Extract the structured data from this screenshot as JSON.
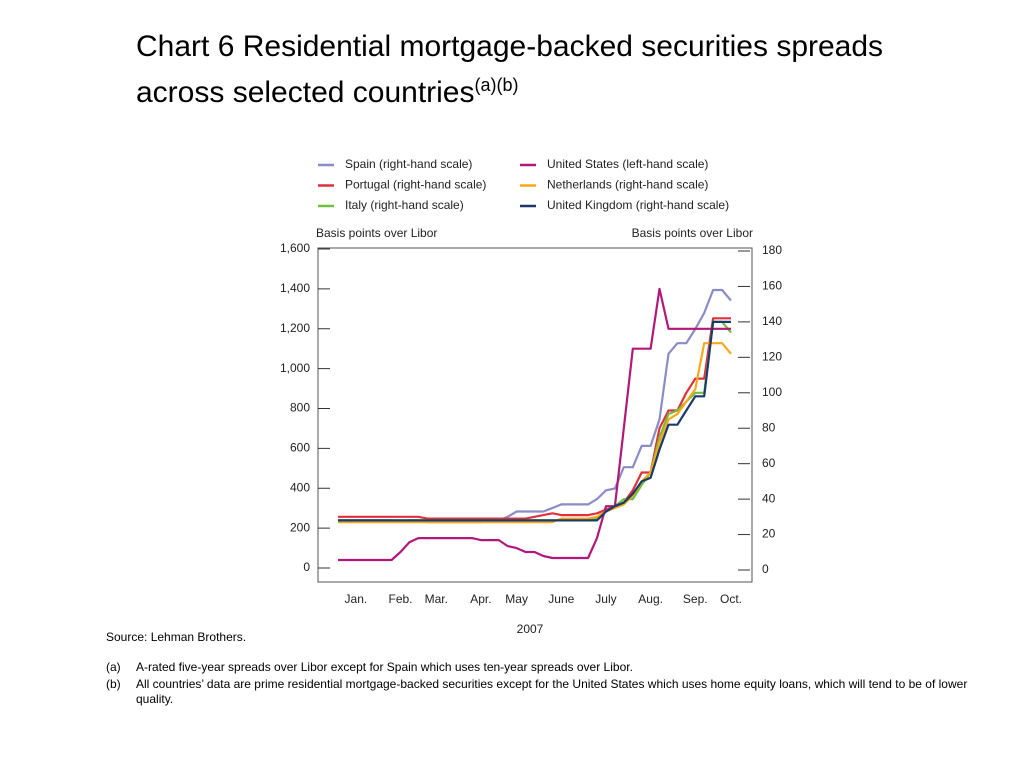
{
  "chart_data": {
    "type": "line",
    "title": "Chart 6  Residential mortgage-backed securities spreads across selected countries",
    "title_note": "(a)(b)",
    "ylabel": "Basis points over Libor",
    "y2label": "Basis points over Libor",
    "xlabel": "2007",
    "categories": [
      null,
      null,
      "Jan.",
      null,
      null,
      null,
      null,
      "Feb.",
      null,
      null,
      null,
      "Mar.",
      null,
      null,
      null,
      null,
      "Apr.",
      null,
      null,
      null,
      "May",
      null,
      null,
      null,
      null,
      "June",
      null,
      null,
      null,
      null,
      "July",
      null,
      null,
      null,
      null,
      "Aug.",
      null,
      null,
      null,
      null,
      "Sep.",
      null,
      null,
      null,
      "Oct."
    ],
    "ylim": [
      0,
      1600
    ],
    "yticks": [
      0,
      200,
      400,
      600,
      800,
      {
        "value": 1000,
        "label": "1,000"
      },
      {
        "value": 1200,
        "label": "1,200"
      },
      {
        "value": 1400,
        "label": "1,400"
      },
      {
        "value": 1600,
        "label": "1,600"
      }
    ],
    "y2lim": [
      0,
      180
    ],
    "y2ticks": [
      0,
      20,
      40,
      60,
      80,
      100,
      120,
      140,
      160,
      180
    ],
    "series": [
      {
        "name": "Spain (right-hand scale)",
        "color": "#8a8cc8",
        "axis": "y2",
        "values": [
          28,
          28,
          28,
          28,
          28,
          28,
          28,
          27,
          28,
          28,
          27,
          27,
          27,
          27,
          27,
          27,
          27,
          28,
          28,
          30,
          33,
          33,
          33,
          33,
          35,
          37,
          37,
          37,
          37,
          40,
          45,
          46,
          58,
          58,
          70,
          70,
          85,
          122,
          128,
          128,
          136,
          145,
          158,
          158,
          152
        ]
      },
      {
        "name": "Portugal (right-hand scale)",
        "color": "#e0303c",
        "axis": "y2",
        "values": [
          30,
          30,
          30,
          30,
          30,
          30,
          30,
          30,
          30,
          30,
          29,
          29,
          29,
          29,
          29,
          29,
          29,
          29,
          29,
          29,
          29,
          29,
          30,
          31,
          32,
          31,
          31,
          31,
          31,
          32,
          34,
          36,
          38,
          45,
          55,
          55,
          80,
          90,
          90,
          100,
          108,
          108,
          142,
          142,
          142
        ]
      },
      {
        "name": "Italy (right-hand scale)",
        "color": "#6cc040",
        "axis": "y2",
        "values": [
          28,
          28,
          28,
          28,
          28,
          28,
          28,
          28,
          28,
          28,
          28,
          28,
          28,
          28,
          28,
          28,
          28,
          28,
          28,
          28,
          28,
          28,
          28,
          28,
          28,
          28,
          29,
          29,
          29,
          29,
          33,
          36,
          40,
          40,
          48,
          55,
          75,
          88,
          90,
          95,
          100,
          100,
          140,
          140,
          134
        ]
      },
      {
        "name": "United States (left-hand scale)",
        "color": "#b0187a",
        "values": [
          40,
          40,
          40,
          40,
          40,
          40,
          40,
          80,
          130,
          150,
          150,
          150,
          150,
          150,
          150,
          150,
          140,
          140,
          140,
          110,
          100,
          80,
          80,
          60,
          50,
          50,
          50,
          50,
          50,
          150,
          310,
          310,
          700,
          1100,
          1100,
          1100,
          1400,
          1200,
          1200,
          1200,
          1200,
          1200,
          1200,
          1200,
          1200
        ]
      },
      {
        "name": "Netherlands (right-hand scale)",
        "color": "#f8a818",
        "axis": "y2",
        "values": [
          27,
          27,
          27,
          27,
          27,
          27,
          27,
          27,
          27,
          27,
          27,
          27,
          27,
          27,
          27,
          27,
          27,
          27,
          27,
          27,
          27,
          27,
          27,
          27,
          27,
          29,
          29,
          29,
          29,
          30,
          33,
          35,
          37,
          42,
          50,
          55,
          72,
          85,
          88,
          95,
          102,
          128,
          128,
          128,
          122
        ]
      },
      {
        "name": "United Kingdom (right-hand scale)",
        "color": "#1a3a6a",
        "axis": "y2",
        "values": [
          28,
          28,
          28,
          28,
          28,
          28,
          28,
          28,
          28,
          28,
          28,
          28,
          28,
          28,
          28,
          28,
          28,
          28,
          28,
          28,
          28,
          28,
          28,
          28,
          28,
          28,
          28,
          28,
          28,
          28,
          33,
          36,
          38,
          43,
          50,
          52,
          68,
          82,
          82,
          90,
          98,
          98,
          140,
          140,
          140
        ]
      }
    ]
  },
  "source": "Source:  Lehman Brothers.",
  "notes": [
    {
      "marker": "(a)",
      "text": "A-rated five-year spreads over Libor except for Spain which uses ten-year spreads over Libor."
    },
    {
      "marker": "(b)",
      "text": "All countries’ data are prime residential mortgage-backed securities except for the United States which uses home equity loans, which will tend to be of lower quality."
    }
  ]
}
